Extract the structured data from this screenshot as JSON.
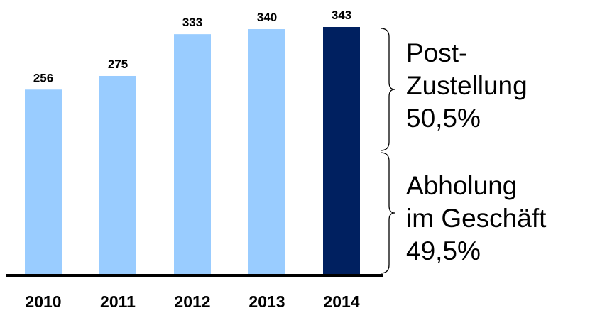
{
  "chart_data": {
    "type": "bar",
    "categories": [
      "2010",
      "2011",
      "2012",
      "2013",
      "2014"
    ],
    "values": [
      256,
      275,
      333,
      340,
      343
    ],
    "colors": [
      "#99ccff",
      "#99ccff",
      "#99ccff",
      "#99ccff",
      "#002060"
    ],
    "annotations": [
      {
        "lines": [
          "Post-",
          "Zustellung",
          "50,5%"
        ]
      },
      {
        "lines": [
          "Abholung",
          "im Geschäft",
          "49,5%"
        ]
      }
    ]
  }
}
